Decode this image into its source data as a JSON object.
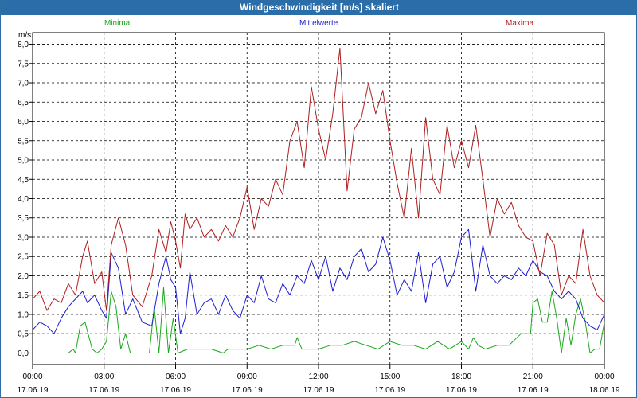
{
  "window": {
    "title": "Windgeschwindigkeit [m/s] skaliert"
  },
  "colors": {
    "titlebar": "#2b6da8",
    "minima": "#1aa81a",
    "mittelwerte": "#1e1ed2",
    "maxima": "#b01e1e"
  },
  "chart_data": {
    "type": "line",
    "title": "Windgeschwindigkeit [m/s] skaliert",
    "ylabel": "m/s",
    "xlabel": "",
    "ylim": [
      -0.3,
      8.3
    ],
    "xlim": [
      0,
      24
    ],
    "x_unit": "hours since 17.06.19 00:00",
    "grid": true,
    "legend_position": "top",
    "yticks": [
      "0,0",
      "0,5",
      "1,0",
      "1,5",
      "2,0",
      "2,5",
      "3,0",
      "3,5",
      "4,0",
      "4,5",
      "5,0",
      "5,5",
      "6,0",
      "6,5",
      "7,0",
      "7,5",
      "8,0"
    ],
    "xticks": [
      {
        "time": "00:00",
        "date": "17.06.19"
      },
      {
        "time": "03:00",
        "date": "17.06.19"
      },
      {
        "time": "06:00",
        "date": "17.06.19"
      },
      {
        "time": "09:00",
        "date": "17.06.19"
      },
      {
        "time": "12:00",
        "date": "17.06.19"
      },
      {
        "time": "15:00",
        "date": "17.06.19"
      },
      {
        "time": "18:00",
        "date": "17.06.19"
      },
      {
        "time": "21:00",
        "date": "17.06.19"
      },
      {
        "time": "00:00",
        "date": "18.06.19"
      }
    ],
    "series": [
      {
        "name": "Minima",
        "x": [
          0,
          0.5,
          1,
          1.5,
          1.7,
          1.8,
          2,
          2.2,
          2.5,
          2.7,
          2.9,
          3.1,
          3.3,
          3.5,
          3.7,
          3.9,
          4.1,
          4.3,
          4.6,
          4.9,
          5.1,
          5.3,
          5.5,
          5.7,
          5.9,
          6.1,
          6.5,
          7,
          7.5,
          8,
          8.2,
          8.5,
          9,
          9.5,
          10,
          10.5,
          11,
          11.1,
          11.3,
          11.5,
          12,
          12.5,
          13,
          13.5,
          14,
          14.5,
          15,
          15.5,
          16,
          16.5,
          17,
          17.5,
          18,
          18.3,
          18.5,
          18.7,
          19,
          19.5,
          20,
          20.5,
          20.9,
          21,
          21.2,
          21.4,
          21.6,
          21.8,
          22,
          22.2,
          22.4,
          22.6,
          22.8,
          23,
          23.2,
          23.4,
          23.6,
          23.8,
          24
        ],
        "y": [
          0,
          0,
          0,
          0,
          0.1,
          0,
          0.7,
          0.8,
          0.1,
          0,
          0.1,
          0.3,
          1.6,
          1.2,
          0.1,
          0.5,
          0,
          0,
          0,
          0,
          1.2,
          0,
          1.7,
          0,
          0.9,
          0,
          0.1,
          0.1,
          0.1,
          0,
          0.1,
          0.1,
          0.1,
          0.2,
          0.1,
          0.2,
          0.2,
          0.4,
          0.1,
          0.1,
          0.1,
          0.2,
          0.2,
          0.3,
          0.2,
          0.1,
          0.3,
          0.2,
          0.2,
          0.1,
          0.3,
          0.1,
          0.3,
          0.1,
          0.4,
          0.2,
          0.1,
          0.2,
          0.2,
          0.5,
          0.5,
          1.3,
          1.4,
          0.8,
          0.8,
          1.6,
          0.9,
          0,
          0.9,
          0.2,
          1.0,
          1.4,
          0.8,
          0,
          0.1,
          0.1,
          0.8
        ]
      },
      {
        "name": "Mittelwerte",
        "x": [
          0,
          0.3,
          0.6,
          0.9,
          1.2,
          1.5,
          1.8,
          2.1,
          2.3,
          2.6,
          2.9,
          3.1,
          3.3,
          3.6,
          3.9,
          4.2,
          4.6,
          5.0,
          5.3,
          5.6,
          5.8,
          6.0,
          6.2,
          6.4,
          6.6,
          6.9,
          7.2,
          7.5,
          7.8,
          8.1,
          8.4,
          8.7,
          9.0,
          9.3,
          9.6,
          9.9,
          10.2,
          10.5,
          10.8,
          11.1,
          11.4,
          11.7,
          12.0,
          12.3,
          12.6,
          12.9,
          13.2,
          13.5,
          13.8,
          14.1,
          14.4,
          14.7,
          15.0,
          15.3,
          15.6,
          15.9,
          16.2,
          16.5,
          16.8,
          17.1,
          17.4,
          17.7,
          18.0,
          18.3,
          18.6,
          18.9,
          19.2,
          19.5,
          19.8,
          20.1,
          20.4,
          20.7,
          21.0,
          21.3,
          21.6,
          21.9,
          22.2,
          22.5,
          22.8,
          23.1,
          23.4,
          23.7,
          24
        ],
        "y": [
          0.6,
          0.8,
          0.7,
          0.5,
          0.9,
          1.2,
          1.4,
          1.6,
          1.3,
          1.5,
          1.1,
          0.9,
          2.6,
          2.2,
          1.0,
          1.4,
          0.8,
          0.7,
          1.8,
          2.5,
          1.9,
          1.7,
          0.5,
          0.9,
          2.1,
          1.0,
          1.3,
          1.4,
          1.0,
          1.5,
          1.1,
          0.9,
          1.5,
          1.3,
          2.0,
          1.4,
          1.3,
          1.8,
          1.5,
          2.0,
          1.8,
          2.4,
          1.9,
          2.5,
          1.6,
          2.2,
          1.9,
          2.5,
          2.7,
          2.1,
          2.3,
          3.0,
          2.4,
          1.5,
          1.9,
          1.6,
          2.6,
          1.3,
          2.3,
          2.5,
          1.7,
          2.1,
          3.0,
          3.2,
          1.6,
          2.8,
          2.0,
          1.8,
          2.0,
          1.9,
          2.2,
          2.0,
          2.4,
          2.1,
          2.0,
          1.6,
          1.4,
          1.6,
          1.4,
          0.9,
          0.7,
          0.6,
          1.0
        ]
      },
      {
        "name": "Maxima",
        "x": [
          0,
          0.3,
          0.6,
          0.9,
          1.2,
          1.5,
          1.8,
          2.1,
          2.3,
          2.6,
          2.9,
          3.1,
          3.3,
          3.6,
          3.9,
          4.2,
          4.6,
          5.0,
          5.3,
          5.6,
          5.8,
          6.0,
          6.2,
          6.4,
          6.6,
          6.9,
          7.2,
          7.5,
          7.8,
          8.1,
          8.4,
          8.7,
          9.0,
          9.3,
          9.6,
          9.9,
          10.2,
          10.5,
          10.8,
          11.1,
          11.4,
          11.7,
          12.0,
          12.3,
          12.6,
          12.9,
          13.2,
          13.5,
          13.8,
          14.1,
          14.4,
          14.7,
          15.0,
          15.3,
          15.6,
          15.9,
          16.2,
          16.5,
          16.8,
          17.1,
          17.4,
          17.7,
          18.0,
          18.3,
          18.6,
          18.9,
          19.2,
          19.5,
          19.8,
          20.1,
          20.4,
          20.7,
          21.0,
          21.3,
          21.6,
          21.9,
          22.2,
          22.5,
          22.8,
          23.1,
          23.4,
          23.7,
          24
        ],
        "y": [
          1.4,
          1.6,
          1.1,
          1.4,
          1.3,
          1.8,
          1.5,
          2.5,
          2.9,
          1.8,
          2.1,
          1.1,
          2.8,
          3.5,
          2.8,
          1.5,
          1.2,
          2.0,
          3.2,
          2.6,
          3.4,
          2.9,
          2.2,
          3.6,
          3.2,
          3.5,
          3.0,
          3.2,
          2.9,
          3.3,
          3.0,
          3.5,
          4.3,
          3.2,
          4.0,
          3.8,
          4.5,
          4.1,
          5.5,
          6.0,
          4.8,
          6.9,
          5.8,
          5.0,
          6.2,
          7.9,
          4.2,
          5.8,
          6.1,
          7.0,
          6.2,
          6.8,
          5.5,
          4.4,
          3.5,
          5.3,
          3.5,
          6.1,
          4.5,
          4.1,
          5.9,
          4.8,
          5.5,
          4.8,
          5.9,
          4.5,
          3.0,
          4.0,
          3.6,
          3.9,
          3.3,
          3.0,
          2.9,
          2.0,
          3.1,
          2.8,
          1.5,
          2.0,
          1.8,
          3.2,
          2.0,
          1.5,
          1.3
        ]
      }
    ]
  }
}
